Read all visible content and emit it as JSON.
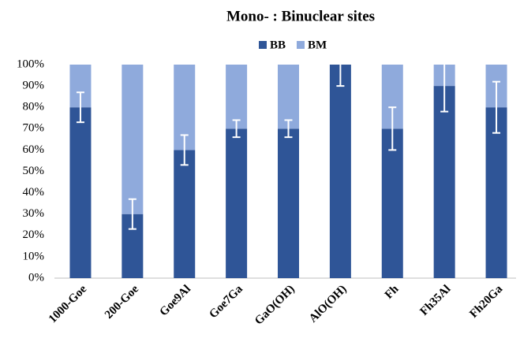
{
  "chart_data": {
    "type": "stacked_bar",
    "title": "Mono- : Binuclear sites",
    "categories": [
      "1000-Goe",
      "200-Goe",
      "Goe9Al",
      "Goe7Ga",
      "GaO(OH)",
      "AlO(OH)",
      "Fh",
      "Fh35Al",
      "Fh20Ga"
    ],
    "series": [
      {
        "name": "BB",
        "color": "#2f5597",
        "values": [
          80,
          30,
          60,
          70,
          70,
          100,
          70,
          90,
          80
        ],
        "errors": [
          7,
          7,
          7,
          4,
          4,
          10,
          10,
          12,
          12
        ]
      },
      {
        "name": "BM",
        "color": "#8faadc",
        "values": [
          20,
          70,
          40,
          30,
          30,
          0,
          30,
          10,
          20
        ]
      }
    ],
    "ylim": [
      0,
      100
    ],
    "yticks": [
      {
        "value": 0,
        "label": "0%"
      },
      {
        "value": 10,
        "label": "10%"
      },
      {
        "value": 20,
        "label": "20%"
      },
      {
        "value": 30,
        "label": "30%"
      },
      {
        "value": 40,
        "label": "40%"
      },
      {
        "value": 50,
        "label": "50%"
      },
      {
        "value": 60,
        "label": "60%"
      },
      {
        "value": 70,
        "label": "70%"
      },
      {
        "value": 80,
        "label": "80%"
      },
      {
        "value": 90,
        "label": "90%"
      },
      {
        "value": 100,
        "label": "100%"
      }
    ],
    "legend": "top"
  }
}
